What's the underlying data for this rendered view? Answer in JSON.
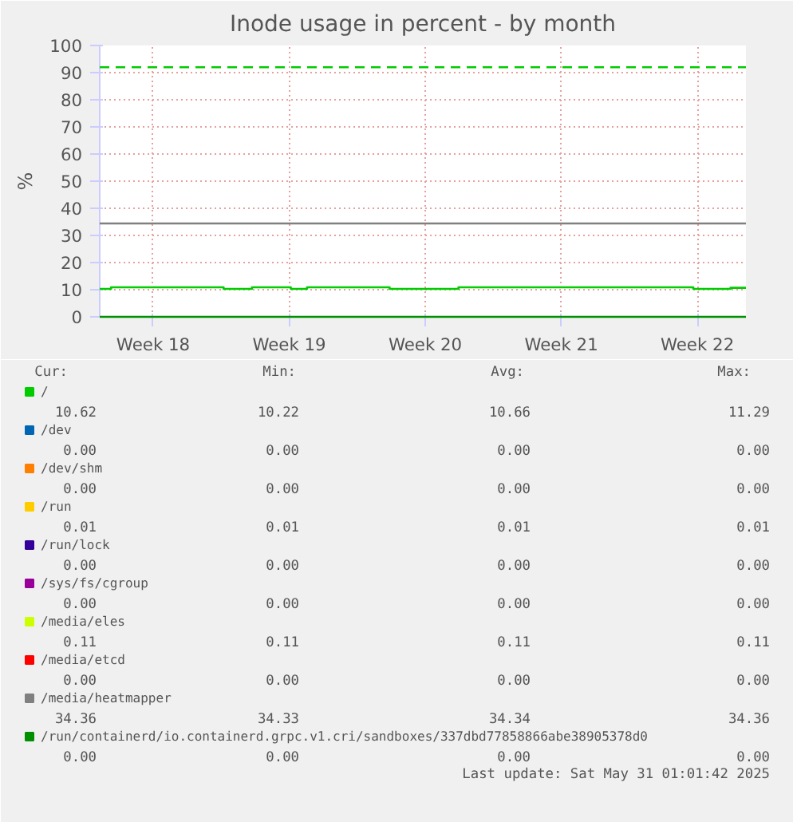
{
  "chart_data": {
    "type": "line",
    "title": "Inode usage in percent - by month",
    "ylabel": "%",
    "xlim": [
      "2025-04-27T19:00",
      "2025-05-31T01:00"
    ],
    "xticks": [
      {
        "value": "2025-04-30T13:00",
        "label": "Week 18"
      },
      {
        "value": "2025-05-07T13:00",
        "label": "Week 19"
      },
      {
        "value": "2025-05-14T13:00",
        "label": "Week 20"
      },
      {
        "value": "2025-05-21T13:00",
        "label": "Week 21"
      },
      {
        "value": "2025-05-28T13:00",
        "label": "Week 22"
      }
    ],
    "ylim": [
      0,
      100
    ],
    "yticks": [
      0,
      10,
      20,
      30,
      40,
      50,
      60,
      70,
      80,
      90,
      100
    ],
    "grid": true,
    "legend": "bottom",
    "marker": "none",
    "line_style": "solid",
    "series": [
      {
        "name": "/",
        "color": "#00cc00",
        "x": [
          "2025-04-27T19:00",
          "2025-04-28T09:00",
          "2025-04-28T09:00",
          "2025-05-04T04:00",
          "2025-05-04T04:00",
          "2025-05-05T15:00",
          "2025-05-05T15:00",
          "2025-05-07T15:00",
          "2025-05-07T15:00",
          "2025-05-08T11:00",
          "2025-05-08T11:00",
          "2025-05-12T17:00",
          "2025-05-12T17:00",
          "2025-05-16T06:00",
          "2025-05-16T06:00",
          "2025-05-28T08:00",
          "2025-05-28T08:00",
          "2025-05-30T06:00",
          "2025-05-30T06:00",
          "2025-05-31T01:00"
        ],
        "values": [
          10.3,
          10.3,
          10.9,
          10.9,
          10.3,
          10.3,
          10.9,
          10.9,
          10.3,
          10.3,
          10.9,
          10.9,
          10.3,
          10.3,
          10.9,
          10.9,
          10.3,
          10.3,
          10.7,
          10.7
        ]
      },
      {
        "name": "/dev",
        "color": "#0066b3",
        "values": [
          null
        ]
      },
      {
        "name": "/dev/shm",
        "color": "#ff8000",
        "values": [
          null
        ]
      },
      {
        "name": "/run",
        "color": "#ffcc00",
        "values": [
          null
        ]
      },
      {
        "name": "/run/lock",
        "color": "#330099",
        "values": [
          null
        ]
      },
      {
        "name": "/sys/fs/cgroup",
        "color": "#990099",
        "values": [
          null
        ]
      },
      {
        "name": "/media/eles",
        "color": "#ccff00",
        "values": [
          null
        ]
      },
      {
        "name": "/media/etcd",
        "color": "#ff0000",
        "values": [
          null
        ]
      },
      {
        "name": "/media/heatmapper",
        "color": "#808080",
        "x": [
          "2025-04-27T19:00",
          "2025-05-31T01:00"
        ],
        "values": [
          34.4,
          34.4
        ]
      },
      {
        "name": "/run/containerd/io.containerd.grpc.v1.cri/sandboxes/337dbd77858866abe38905378d0",
        "color": "#008f00",
        "x": [
          "2025-04-27T19:00",
          "2025-05-31T01:00"
        ],
        "values": [
          0,
          0
        ]
      }
    ],
    "ref_lines": [
      {
        "axis": "y",
        "value": 92,
        "color": "#00cc00",
        "line_style": "dashed"
      }
    ],
    "annotations": [
      "Cur:",
      "Min:",
      "Avg:",
      "Max:",
      "10.62",
      "10.22",
      "10.66",
      "11.29",
      "0.00",
      "0.00",
      "0.00",
      "0.00",
      "0.00",
      "0.00",
      "0.00",
      "0.00",
      "0.01",
      "0.01",
      "0.01",
      "0.01",
      "0.00",
      "0.00",
      "0.00",
      "0.00",
      "0.00",
      "0.00",
      "0.00",
      "0.00",
      "0.11",
      "0.11",
      "0.11",
      "0.11",
      "0.00",
      "0.00",
      "0.00",
      "0.00",
      "34.36",
      "34.33",
      "34.34",
      "34.36",
      "0.00",
      "0.00",
      "0.00",
      "0.00",
      "Last update: Sat May 31 01:01:42 2025"
    ]
  }
}
